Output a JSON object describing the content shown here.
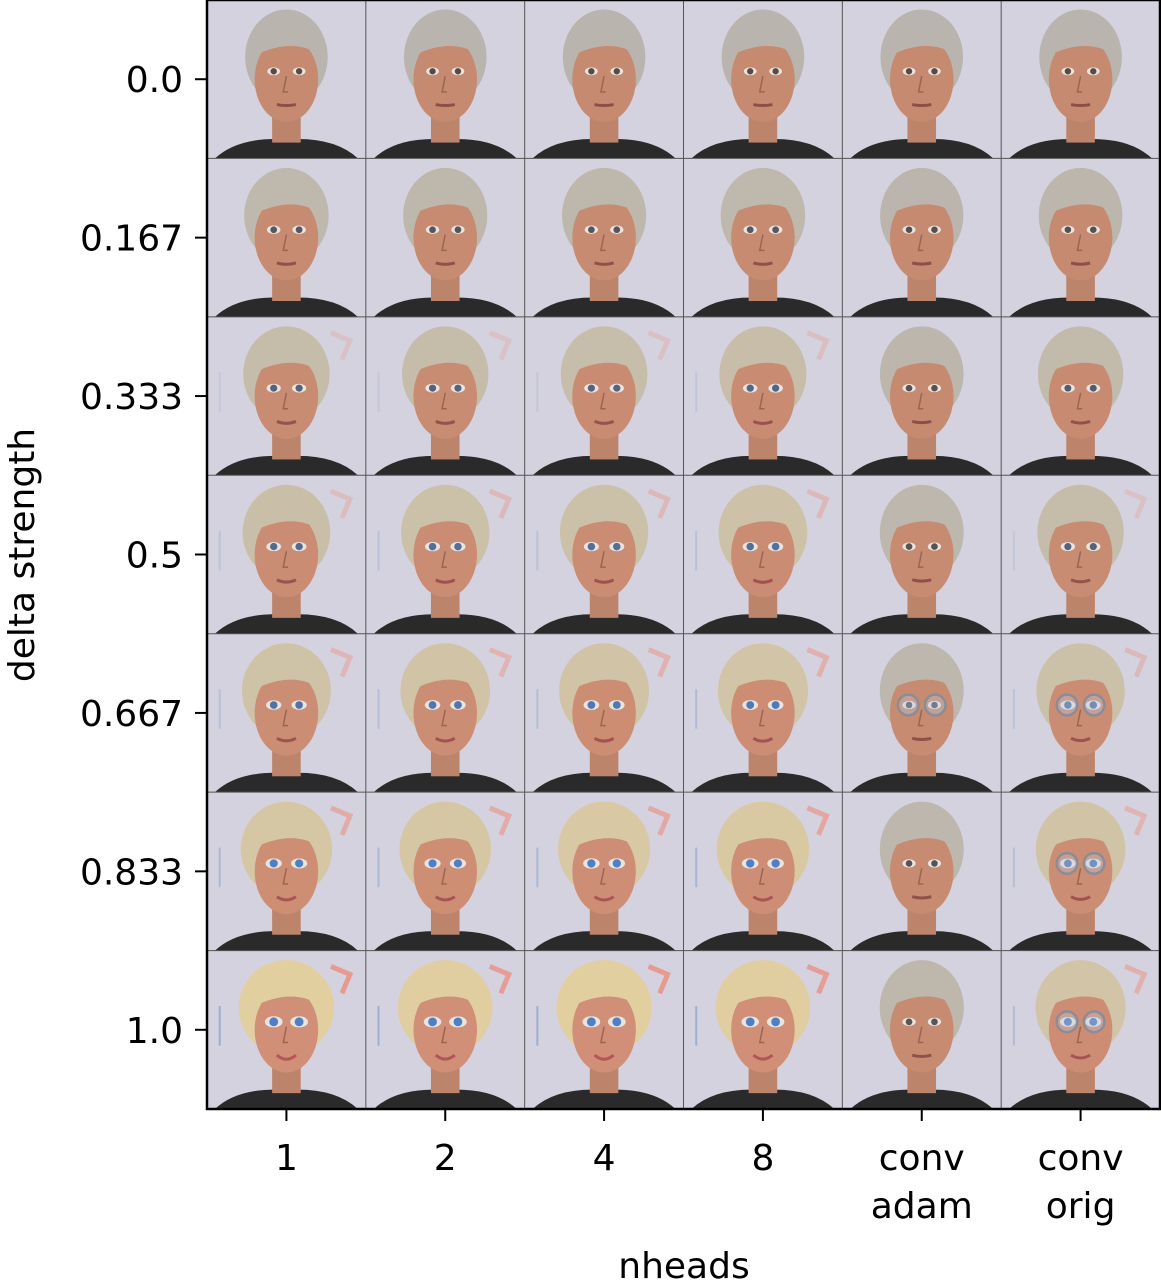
{
  "chart_data": {
    "type": "image-grid",
    "title": "",
    "xlabel": "nheads",
    "ylabel": "delta strength",
    "columns": [
      {
        "line1": "1",
        "line2": ""
      },
      {
        "line1": "2",
        "line2": ""
      },
      {
        "line1": "4",
        "line2": ""
      },
      {
        "line1": "8",
        "line2": ""
      },
      {
        "line1": "conv",
        "line2": "adam"
      },
      {
        "line1": "conv",
        "line2": "orig"
      }
    ],
    "rows": [
      "0.0",
      "0.167",
      "0.333",
      "0.5",
      "0.667",
      "0.833",
      "1.0"
    ],
    "cells": [
      [
        {
          "var": 0.0,
          "glasses": 0
        },
        {
          "var": 0.0,
          "glasses": 0
        },
        {
          "var": 0.0,
          "glasses": 0
        },
        {
          "var": 0.0,
          "glasses": 0
        },
        {
          "var": 0.0,
          "glasses": 0
        },
        {
          "var": 0.0,
          "glasses": 0
        }
      ],
      [
        {
          "var": 0.15,
          "glasses": 0
        },
        {
          "var": 0.12,
          "glasses": 0
        },
        {
          "var": 0.12,
          "glasses": 0
        },
        {
          "var": 0.15,
          "glasses": 0
        },
        {
          "var": 0.05,
          "glasses": 0
        },
        {
          "var": 0.08,
          "glasses": 0
        }
      ],
      [
        {
          "var": 0.3,
          "glasses": 0
        },
        {
          "var": 0.3,
          "glasses": 0
        },
        {
          "var": 0.32,
          "glasses": 0
        },
        {
          "var": 0.35,
          "glasses": 0
        },
        {
          "var": 0.08,
          "glasses": 0
        },
        {
          "var": 0.22,
          "glasses": 0
        }
      ],
      [
        {
          "var": 0.4,
          "glasses": 0
        },
        {
          "var": 0.45,
          "glasses": 0
        },
        {
          "var": 0.45,
          "glasses": 0
        },
        {
          "var": 0.48,
          "glasses": 0
        },
        {
          "var": 0.1,
          "glasses": 0
        },
        {
          "var": 0.3,
          "glasses": 0
        }
      ],
      [
        {
          "var": 0.5,
          "glasses": 0
        },
        {
          "var": 0.55,
          "glasses": 0
        },
        {
          "var": 0.58,
          "glasses": 0
        },
        {
          "var": 0.6,
          "glasses": 0
        },
        {
          "var": 0.1,
          "glasses": 1
        },
        {
          "var": 0.45,
          "glasses": 1
        }
      ],
      [
        {
          "var": 0.7,
          "glasses": 0
        },
        {
          "var": 0.7,
          "glasses": 0
        },
        {
          "var": 0.75,
          "glasses": 0
        },
        {
          "var": 0.78,
          "glasses": 0
        },
        {
          "var": 0.1,
          "glasses": 0
        },
        {
          "var": 0.55,
          "glasses": 1
        }
      ],
      [
        {
          "var": 1.0,
          "glasses": 0
        },
        {
          "var": 0.95,
          "glasses": 0
        },
        {
          "var": 1.0,
          "glasses": 0
        },
        {
          "var": 0.95,
          "glasses": 0
        },
        {
          "var": 0.12,
          "glasses": 0
        },
        {
          "var": 0.6,
          "glasses": 1
        }
      ]
    ],
    "colors": {
      "background": "#d4d2de",
      "skin": "#c58a70",
      "hair_gray": "#b9b4ae",
      "hair_blond": "#e2cfa0",
      "suit": "#2a2a2a",
      "eye_blue": "#4f7fc4",
      "lips": "#b4555a",
      "glasses": "#8c8c96"
    }
  }
}
